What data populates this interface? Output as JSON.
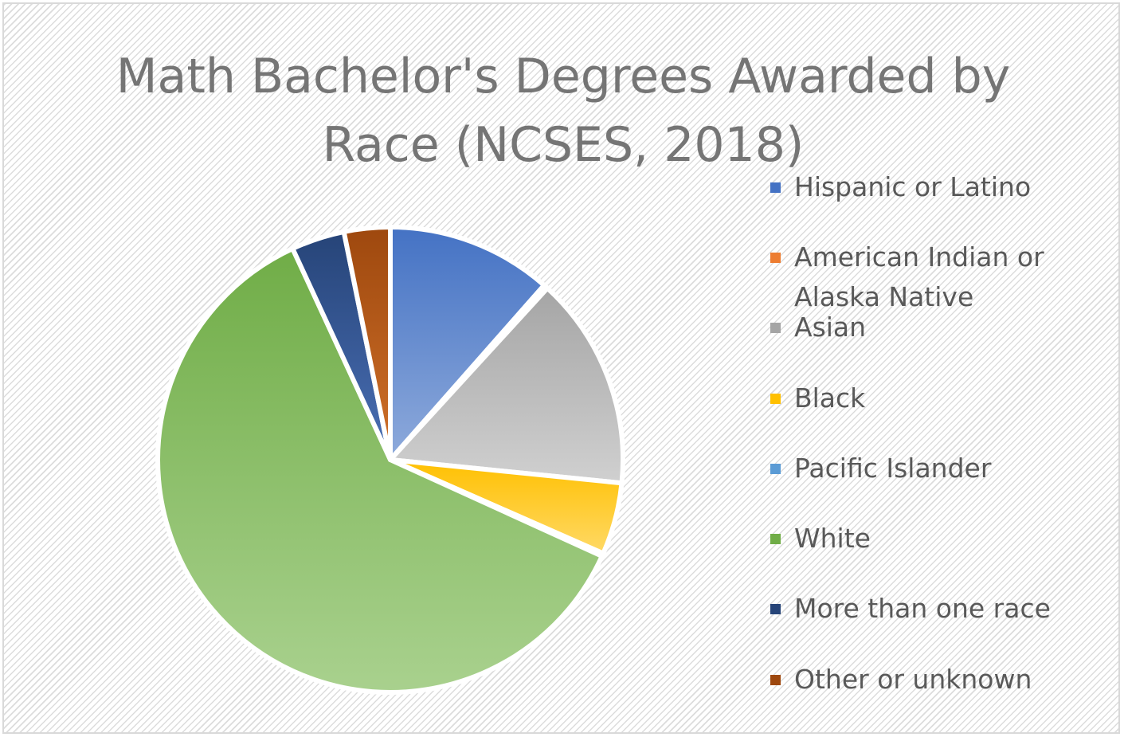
{
  "chart_data": {
    "type": "pie",
    "title": "Math Bachelor's Degrees Awarded by Race (NCSES, 2018)",
    "legend_position": "right",
    "categories": [
      "Hispanic or Latino",
      "American Indian or Alaska Native",
      "Asian",
      "Black",
      "Pacific Islander",
      "White",
      "More than one race",
      "Other or unknown"
    ],
    "values": [
      11.5,
      0.3,
      14.8,
      5.0,
      0.2,
      61.3,
      3.7,
      3.2
    ],
    "unit": "% of degrees",
    "colors": [
      "#4472c4",
      "#ed7d31",
      "#a5a5a5",
      "#ffc000",
      "#5b9bd5",
      "#70ad47",
      "#264478",
      "#9e480e"
    ],
    "highlight_colors": [
      "#8eaadb",
      "#f4b183",
      "#d0d0d0",
      "#ffd966",
      "#9dc3e6",
      "#a9d18e",
      "#4a6fb5",
      "#d0712a"
    ]
  }
}
